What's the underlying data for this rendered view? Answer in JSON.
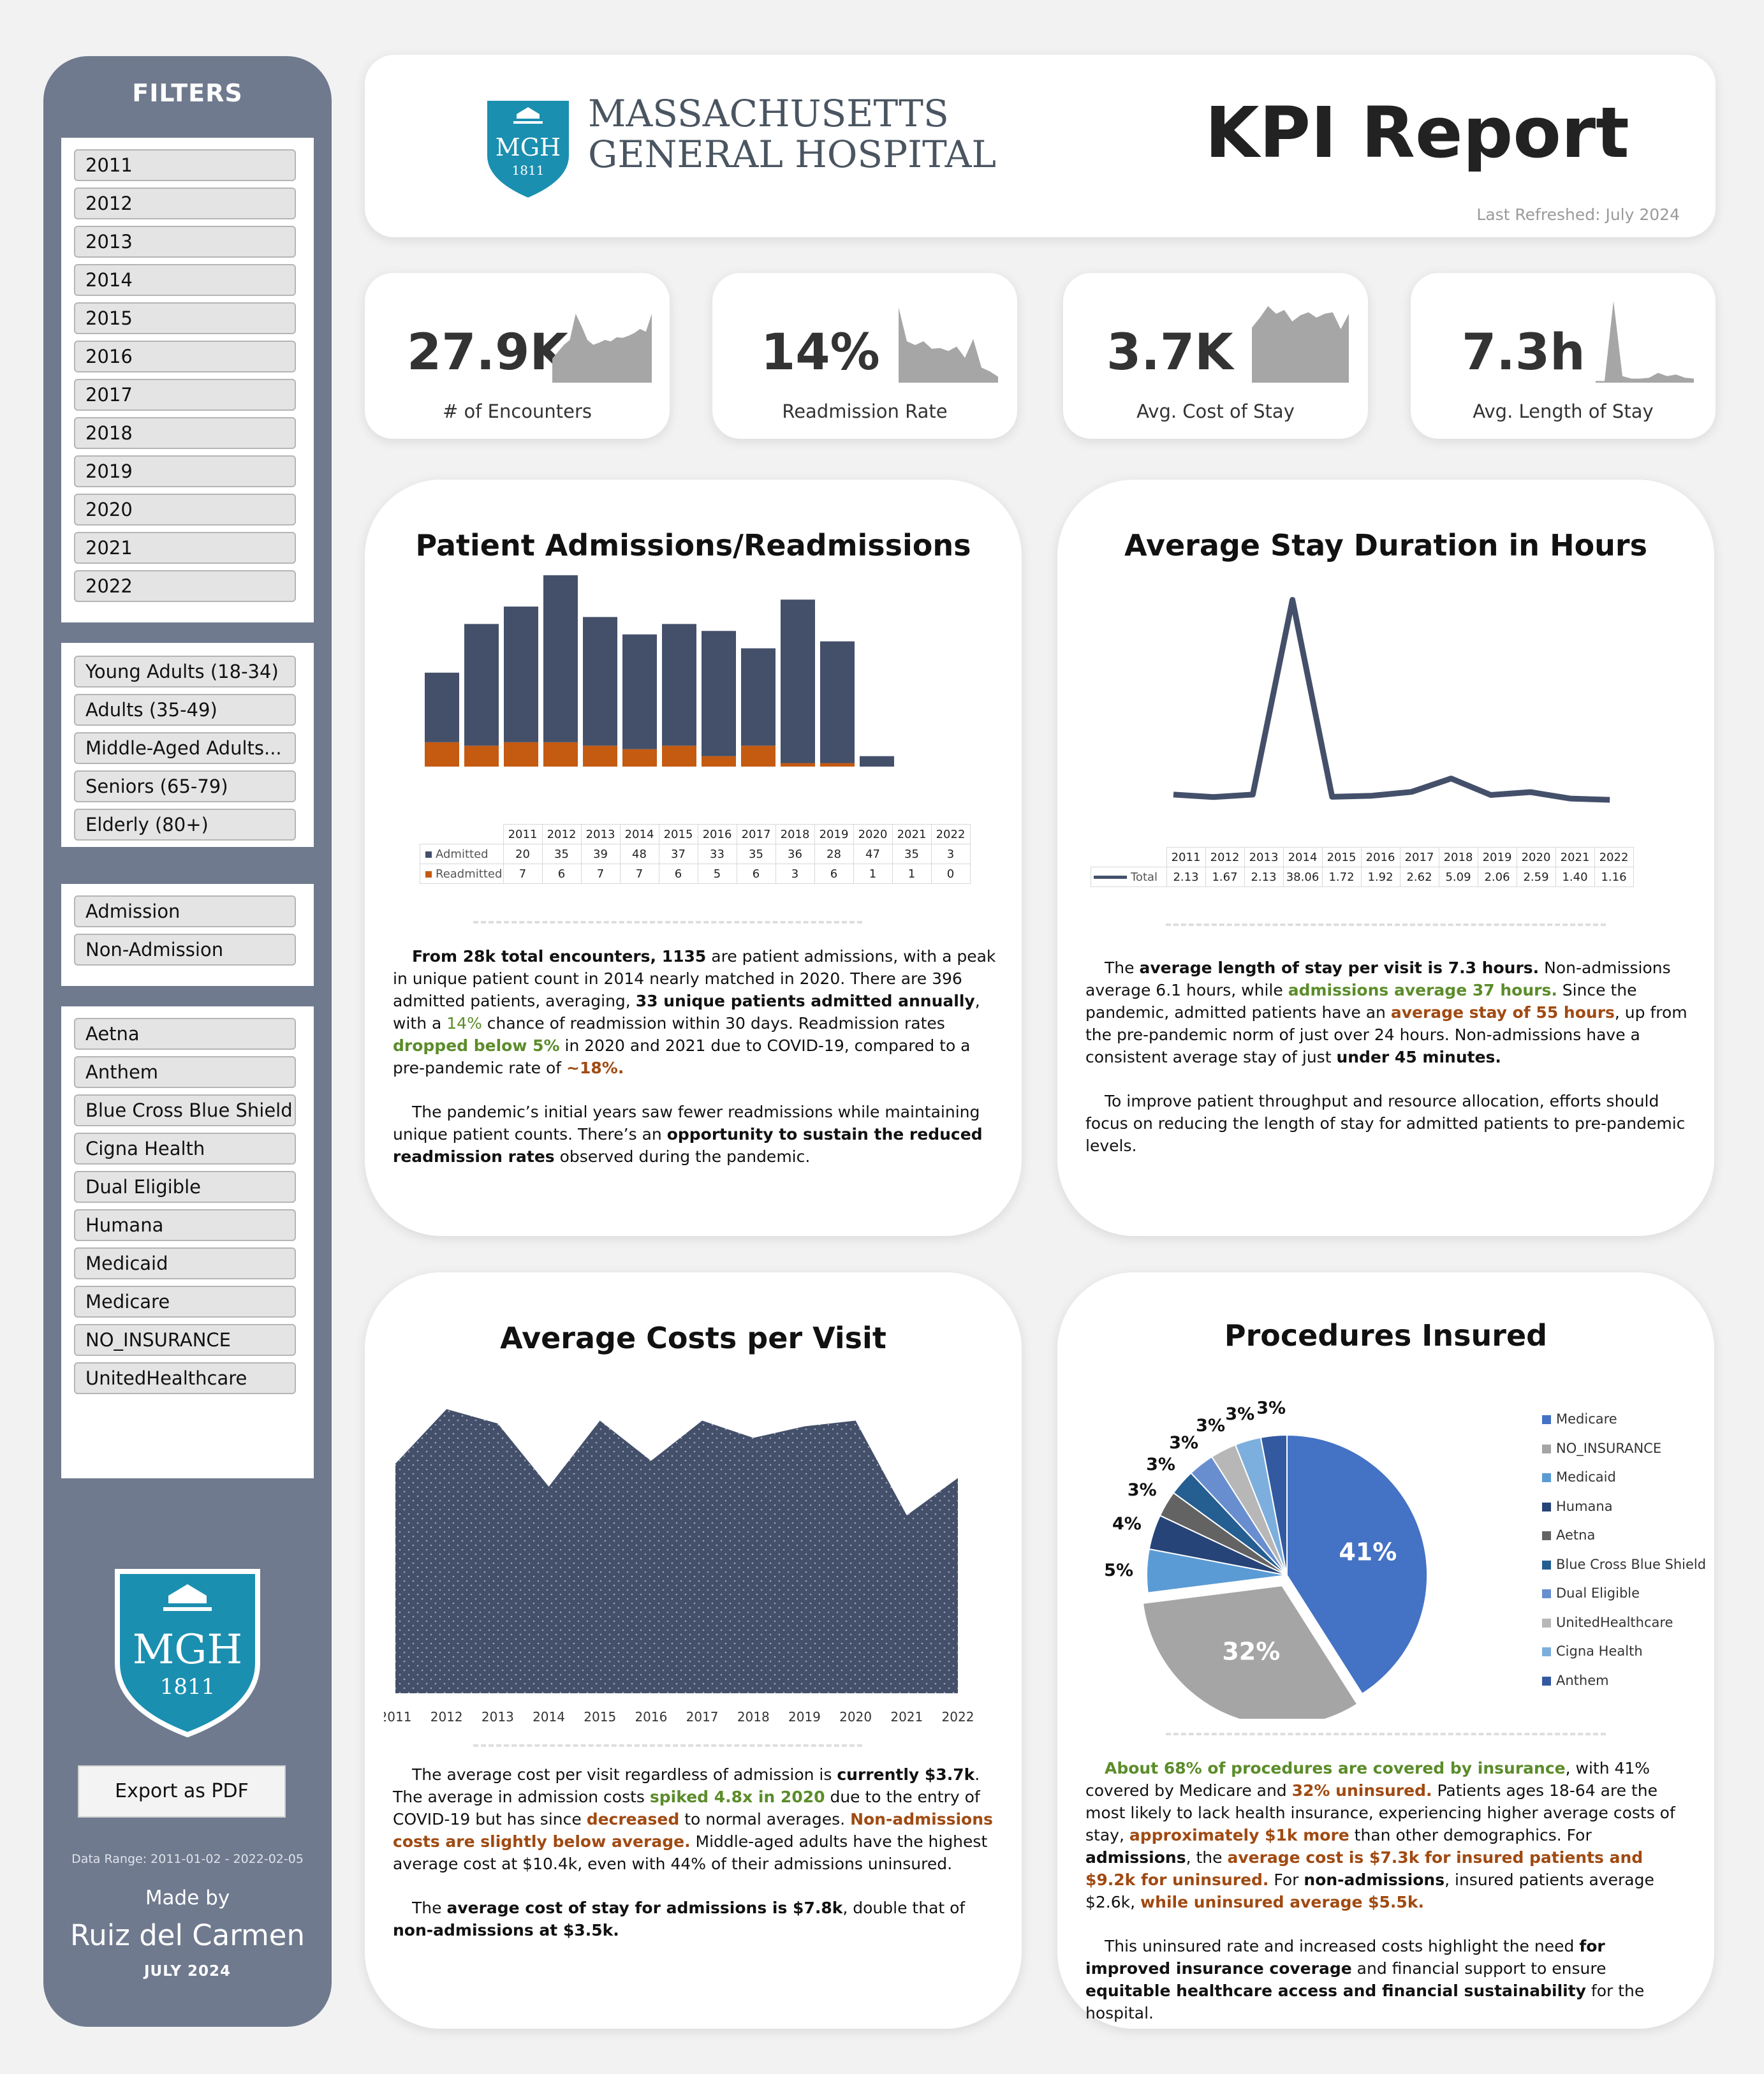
{
  "sidebar": {
    "title": "FILTERS",
    "years": [
      "2011",
      "2012",
      "2013",
      "2014",
      "2015",
      "2016",
      "2017",
      "2018",
      "2019",
      "2020",
      "2021",
      "2022"
    ],
    "age_groups": [
      "Young Adults (18-34)",
      "Adults (35-49)",
      "Middle-Aged Adults...",
      "Seniors (65-79)",
      "Elderly (80+)"
    ],
    "admission": [
      "Admission",
      "Non-Admission"
    ],
    "payers": [
      "Aetna",
      "Anthem",
      "Blue Cross Blue Shield",
      "Cigna Health",
      "Dual Eligible",
      "Humana",
      "Medicaid",
      "Medicare",
      "NO_INSURANCE",
      "UnitedHealthcare"
    ],
    "logo_text": "MGH",
    "logo_year": "1811",
    "export_label": "Export as PDF",
    "data_range": "Data Range: 2011-01-02 - 2022-02-05",
    "made_by": "Made by",
    "author": "Ruiz del Carmen",
    "made_date": "JULY 2024"
  },
  "header": {
    "logo_text": "MGH",
    "logo_year": "1811",
    "org_line1": "MASSACHUSETTS",
    "org_line2": "GENERAL HOSPITAL",
    "title": "KPI Report",
    "last_refreshed": "Last Refreshed: July 2024"
  },
  "kpis": [
    {
      "value": "27.9K",
      "label": "# of Encounters"
    },
    {
      "value": "14%",
      "label": "Readmission Rate"
    },
    {
      "value": "3.7K",
      "label": "Avg. Cost of Stay"
    },
    {
      "value": "7.3h",
      "label": "Avg. Length of Stay"
    }
  ],
  "admissions": {
    "title": "Patient Admissions/Readmissions",
    "series_admitted": "Admitted",
    "series_readmitted": "Readmitted",
    "narrative": {
      "p1_a": "From 28k total encounters, 1135",
      "p1_b": " are patient admissions, with a peak in unique patient count in 2014 nearly matched in 2020. There are 396 admitted patients, averaging, ",
      "p1_c": "33 unique patients admitted annually",
      "p1_d": ", with a ",
      "p1_e": "14%",
      "p1_f": " chance of readmission within 30 days. Readmission rates ",
      "p1_g": "dropped below 5%",
      "p1_h": " in 2020 and 2021 due to COVID-19, compared to a pre-pandemic rate of ",
      "p1_i": "~18%.",
      "p2_a": "The pandemic’s initial years saw fewer readmissions while maintaining unique patient counts. There’s an ",
      "p2_b": "opportunity to sustain the reduced readmission rates",
      "p2_c": " observed during the pandemic."
    }
  },
  "stay": {
    "title": "Average Stay Duration in Hours",
    "series_name": "Total",
    "narrative": {
      "p1_a": "The ",
      "p1_b": "average length of stay per visit is 7.3 hours.",
      "p1_c": " Non-admissions average 6.1 hours, while ",
      "p1_d": "admissions average 37 hours.",
      "p1_e": " Since the pandemic, admitted patients have an ",
      "p1_f": "average stay of 55 hours",
      "p1_g": ", up from the pre-pandemic norm of just over 24 hours. Non-admissions have a consistent average stay of just ",
      "p1_h": "under 45 minutes.",
      "p2": "To improve patient throughput and resource allocation, efforts should focus on reducing the length of stay for admitted patients to pre-pandemic levels."
    }
  },
  "costs": {
    "title": "Average Costs per Visit",
    "narrative": {
      "p1_a": "The average cost per visit regardless of admission is ",
      "p1_b": "currently $3.7k",
      "p1_c": ". The average in admission costs ",
      "p1_d": "spiked 4.8x in 2020",
      "p1_e": " due to the entry of COVID-19 but has since ",
      "p1_f": "decreased",
      "p1_g": " to normal averages. ",
      "p1_h": "Non-admissions costs are slightly below average.",
      "p1_i": " Middle-aged adults have the highest average cost at $10.4k, even with 44% of their admissions uninsured.",
      "p2_a": "The ",
      "p2_b": "average cost of stay for admissions is $7.8k",
      "p2_c": ", double that of ",
      "p2_d": "non-admissions at $3.5k."
    }
  },
  "procedures": {
    "title": "Procedures Insured",
    "narrative": {
      "p1_a": "About 68% of procedures are covered by insurance",
      "p1_b": ", with 41% covered by Medicare and ",
      "p1_c": "32% uninsured.",
      "p1_d": " Patients ages 18-64 are the most likely to lack health insurance, experiencing higher average costs of stay, ",
      "p1_e": "approximately $1k more",
      "p1_f": " than other demographics. For ",
      "p1_g": "admissions",
      "p1_h": ", the ",
      "p1_i": "average cost is $7.3k for insured patients and $9.2k for uninsured.",
      "p1_j": " For ",
      "p1_k": "non-admissions",
      "p1_l": ", insured patients average $2.6k, ",
      "p1_m": "while uninsured average $5.5k.",
      "p2_a": "This uninsured rate and increased costs highlight the need ",
      "p2_b": "for improved insurance coverage",
      "p2_c": " and financial support to ensure ",
      "p2_d": "equitable healthcare access and financial sustainability",
      "p2_e": " for the hospital."
    }
  },
  "colors": {
    "navy": "#44506a",
    "orange": "#c55a11",
    "sidebar": "#6f7a8e",
    "teal": "#1b8fb0",
    "kpi_gray": "#a6a6a6"
  },
  "chart_data": [
    {
      "type": "bar",
      "chart": "Patient Admissions/Readmissions",
      "categories": [
        "2011",
        "2012",
        "2013",
        "2014",
        "2015",
        "2016",
        "2017",
        "2018",
        "2019",
        "2020",
        "2021",
        "2022"
      ],
      "series": [
        {
          "name": "Admitted",
          "values": [
            20,
            35,
            39,
            48,
            37,
            33,
            35,
            36,
            28,
            47,
            35,
            3
          ]
        },
        {
          "name": "Readmitted",
          "values": [
            7,
            6,
            7,
            7,
            6,
            5,
            6,
            3,
            6,
            1,
            1,
            0
          ]
        }
      ],
      "stacked": true,
      "labels": [
        "20",
        "35",
        "39",
        "48",
        "37",
        "33",
        "35",
        "36",
        "28",
        "47",
        "35",
        "3",
        "7",
        "6",
        "7",
        "7",
        "6",
        "5",
        "6",
        "3",
        "6",
        "1",
        "1",
        "0"
      ]
    },
    {
      "type": "line",
      "chart": "Average Stay Duration in Hours",
      "categories": [
        "2011",
        "2012",
        "2013",
        "2014",
        "2015",
        "2016",
        "2017",
        "2018",
        "2019",
        "2020",
        "2021",
        "2022"
      ],
      "series": [
        {
          "name": "Total",
          "values": [
            2.13,
            1.67,
            2.13,
            38.06,
            1.72,
            1.92,
            2.62,
            5.09,
            2.06,
            2.59,
            1.4,
            1.16
          ]
        }
      ],
      "labels": [
        "2.13",
        "1.67",
        "2.13",
        "38.06",
        "1.72",
        "1.92",
        "2.62",
        "5.09",
        "2.06",
        "2.59",
        "1.40",
        "1.16"
      ]
    },
    {
      "type": "area",
      "chart": "Average Costs per Visit",
      "categories": [
        "2011",
        "2012",
        "2013",
        "2014",
        "2015",
        "2016",
        "2017",
        "2018",
        "2019",
        "2020",
        "2021",
        "2022"
      ],
      "values": [
        0.8,
        0.99,
        0.94,
        0.72,
        0.95,
        0.81,
        0.95,
        0.89,
        0.93,
        0.95,
        0.62,
        0.75
      ],
      "ylim": [
        0,
        1
      ]
    },
    {
      "type": "pie",
      "chart": "Procedures Insured",
      "slices": [
        {
          "name": "Medicare",
          "value": 41,
          "label": "41%",
          "color": "#4472c4"
        },
        {
          "name": "NO_INSURANCE",
          "value": 32,
          "label": "32%",
          "color": "#a5a5a5"
        },
        {
          "name": "Medicaid",
          "value": 5,
          "label": "5%",
          "color": "#5b9bd5"
        },
        {
          "name": "Humana",
          "value": 4,
          "label": "4%",
          "color": "#264478"
        },
        {
          "name": "Aetna",
          "value": 3,
          "label": "3%",
          "color": "#636363"
        },
        {
          "name": "Blue Cross Blue Shield",
          "value": 3,
          "label": "3%",
          "color": "#255e91"
        },
        {
          "name": "Dual Eligible",
          "value": 3,
          "label": "3%",
          "color": "#698ed0"
        },
        {
          "name": "UnitedHealthcare",
          "value": 3,
          "label": "3%",
          "color": "#b7b7b7"
        },
        {
          "name": "Cigna Health",
          "value": 3,
          "label": "3%",
          "color": "#7cafdd"
        },
        {
          "name": "Anthem",
          "value": 3,
          "label": "3%",
          "color": "#335aa1"
        }
      ]
    }
  ],
  "sparklines": [
    [
      0.35,
      0.45,
      0.55,
      0.62,
      1.0,
      0.82,
      0.62,
      0.55,
      0.58,
      0.62,
      0.6,
      0.66,
      0.65,
      0.68,
      0.72,
      0.78,
      0.74,
      1.0
    ],
    [
      1.0,
      0.55,
      0.5,
      0.55,
      0.45,
      0.46,
      0.42,
      0.48,
      0.33,
      0.58,
      0.2,
      0.15,
      0.08
    ],
    [
      0.72,
      0.85,
      1.0,
      0.9,
      0.95,
      0.8,
      0.88,
      0.92,
      0.85,
      0.9,
      0.92,
      0.7,
      0.9
    ],
    [
      0.02,
      0.02,
      1.0,
      0.08,
      0.05,
      0.05,
      0.06,
      0.12,
      0.08,
      0.1,
      0.06,
      0.05
    ]
  ]
}
